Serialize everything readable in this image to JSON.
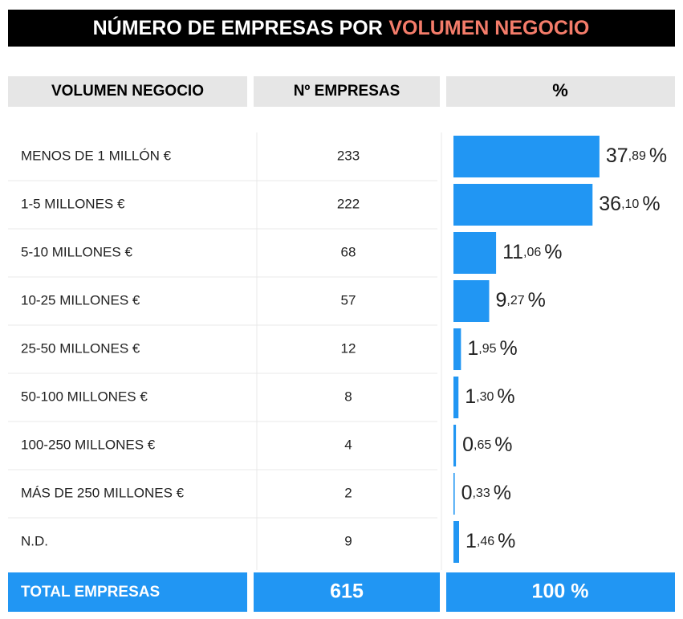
{
  "title": {
    "prefix": "NÚMERO DE EMPRESAS POR",
    "highlight": "VOLUMEN NEGOCIO"
  },
  "table": {
    "headers": [
      "VOLUMEN NEGOCIO",
      "Nº EMPRESAS",
      "%"
    ],
    "rows": [
      {
        "label": "MENOS DE 1 MILLÓN €",
        "count": 233,
        "percent": 37.89,
        "percent_label": {
          "int": "37",
          "dec": ",89",
          "unit": "%"
        }
      },
      {
        "label": "1-5 MILLONES €",
        "count": 222,
        "percent": 36.1,
        "percent_label": {
          "int": "36",
          "dec": ",10",
          "unit": "%"
        }
      },
      {
        "label": "5-10 MILLONES €",
        "count": 68,
        "percent": 11.06,
        "percent_label": {
          "int": "11",
          "dec": ",06",
          "unit": "%"
        }
      },
      {
        "label": "10-25 MILLONES €",
        "count": 57,
        "percent": 9.27,
        "percent_label": {
          "int": "9",
          "dec": ",27",
          "unit": "%"
        }
      },
      {
        "label": "25-50 MILLONES €",
        "count": 12,
        "percent": 1.95,
        "percent_label": {
          "int": "1",
          "dec": ",95",
          "unit": "%"
        }
      },
      {
        "label": "50-100 MILLONES €",
        "count": 8,
        "percent": 1.3,
        "percent_label": {
          "int": "1",
          "dec": ",30",
          "unit": "%"
        }
      },
      {
        "label": "100-250 MILLONES €",
        "count": 4,
        "percent": 0.65,
        "percent_label": {
          "int": "0",
          "dec": ",65",
          "unit": "%"
        }
      },
      {
        "label": "MÁS DE 250 MILLONES €",
        "count": 2,
        "percent": 0.33,
        "percent_label": {
          "int": "0",
          "dec": ",33",
          "unit": "%"
        }
      },
      {
        "label": "N.D.",
        "count": 9,
        "percent": 1.46,
        "percent_label": {
          "int": "1",
          "dec": ",46",
          "unit": "%"
        }
      }
    ],
    "total": {
      "label": "TOTAL EMPRESAS",
      "count": 615,
      "percent": 100,
      "percent_label": "100 %"
    }
  },
  "bar_color": "#2196f3"
}
